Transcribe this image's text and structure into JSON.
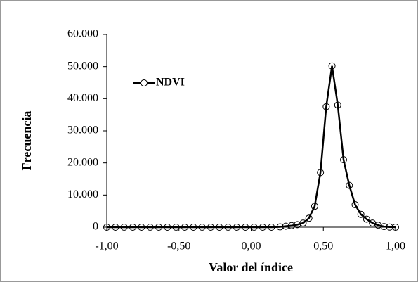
{
  "chart_data": {
    "type": "line",
    "x_label": "Valor del índice",
    "y_label": "Frecuencia",
    "x": [
      -1,
      -0.94,
      -0.88,
      -0.82,
      -0.76,
      -0.7,
      -0.64,
      -0.58,
      -0.52,
      -0.46,
      -0.4,
      -0.34,
      -0.28,
      -0.22,
      -0.16,
      -0.1,
      -0.04,
      0.02,
      0.08,
      0.14,
      0.2,
      0.24,
      0.28,
      0.32,
      0.36,
      0.4,
      0.44,
      0.48,
      0.52,
      0.56,
      0.6,
      0.64,
      0.68,
      0.72,
      0.76,
      0.8,
      0.84,
      0.88,
      0.92,
      0.96,
      1
    ],
    "series": [
      {
        "name": "NDVI",
        "color": "#000000",
        "values": [
          0,
          0,
          0,
          0,
          0,
          0,
          0,
          0,
          0,
          0,
          0,
          0,
          0,
          0,
          0,
          0,
          0,
          0,
          0,
          0,
          100,
          300,
          500,
          800,
          1300,
          2800,
          6500,
          17000,
          37500,
          50200,
          38000,
          21000,
          13000,
          7000,
          4000,
          2500,
          1300,
          600,
          200,
          50,
          0
        ]
      }
    ],
    "xlim": [
      -1,
      1
    ],
    "xticks": [
      {
        "value": -1,
        "label": "-1,00"
      },
      {
        "value": -0.5,
        "label": "-0,50"
      },
      {
        "value": 0,
        "label": "0,00"
      },
      {
        "value": 0.5,
        "label": "0,50"
      },
      {
        "value": 1,
        "label": "1,00"
      }
    ],
    "ylim": [
      0,
      60000
    ],
    "yticks": [
      0,
      {
        "value": 10000,
        "label": "10.000"
      },
      {
        "value": 20000,
        "label": "20.000"
      },
      {
        "value": 30000,
        "label": "30.000"
      },
      {
        "value": 40000,
        "label": "40.000"
      },
      {
        "value": 50000,
        "label": "50.000"
      },
      {
        "value": 60000,
        "label": "60.000"
      }
    ],
    "legend": "upper-left"
  }
}
